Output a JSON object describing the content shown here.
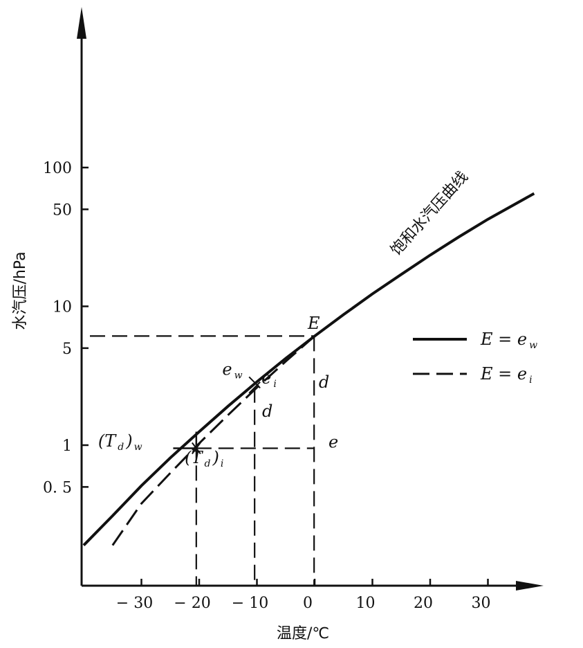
{
  "chart_data": {
    "type": "line",
    "xlabel": "温度/℃",
    "ylabel": "水汽压/hPa",
    "y_scale": "log",
    "x_ticks": [
      {
        "v": -30,
        "label": "− 30"
      },
      {
        "v": -20,
        "label": "− 20"
      },
      {
        "v": -10,
        "label": "− 10"
      },
      {
        "v": 0,
        "label": "0"
      },
      {
        "v": 10,
        "label": "10"
      },
      {
        "v": 20,
        "label": "20"
      },
      {
        "v": 30,
        "label": "30"
      }
    ],
    "y_ticks": [
      {
        "v": 0.5,
        "label": "0. 5"
      },
      {
        "v": 1,
        "label": "1"
      },
      {
        "v": 5,
        "label": "5"
      },
      {
        "v": 10,
        "label": "10"
      },
      {
        "v": 50,
        "label": "50"
      },
      {
        "v": 100,
        "label": "100"
      }
    ],
    "series": [
      {
        "name": "E = e_w",
        "style": "solid",
        "points": [
          [
            -40,
            0.19
          ],
          [
            -35,
            0.31
          ],
          [
            -30,
            0.51
          ],
          [
            -25,
            0.81
          ],
          [
            -20,
            1.25
          ],
          [
            -15,
            1.91
          ],
          [
            -10,
            2.86
          ],
          [
            -5,
            4.22
          ],
          [
            0,
            6.11
          ],
          [
            5,
            8.72
          ],
          [
            10,
            12.3
          ],
          [
            15,
            17.0
          ],
          [
            20,
            23.4
          ],
          [
            25,
            31.7
          ],
          [
            30,
            42.4
          ],
          [
            38,
            65
          ]
        ]
      },
      {
        "name": "E = e_i",
        "style": "dashed",
        "points": [
          [
            -35,
            0.19
          ],
          [
            -30,
            0.38
          ],
          [
            -25,
            0.63
          ],
          [
            -20,
            1.03
          ],
          [
            -15,
            1.65
          ],
          [
            -10,
            2.6
          ],
          [
            -5,
            4.02
          ],
          [
            0,
            6.11
          ]
        ]
      }
    ],
    "guides": {
      "E_level": 6.11,
      "e_level": 0.95,
      "x_verticals": [
        -20.5,
        -10.4,
        -0.1
      ]
    },
    "curve_label": "饱和水汽压曲线",
    "annotations": [
      {
        "text": "E",
        "x": -1.2,
        "y": 6.9
      },
      {
        "text": "e",
        "sub": "w",
        "x": -16,
        "y": 3.2
      },
      {
        "text": "e",
        "sub": "i",
        "x": -9.2,
        "y": 2.78
      },
      {
        "text": "d",
        "x": 0.7,
        "y": 2.6
      },
      {
        "text": "d",
        "x": -9.1,
        "y": 1.6
      },
      {
        "text": "e",
        "x": 2.4,
        "y": 0.96
      },
      {
        "text": "(T",
        "sub": "d",
        "post": ")",
        "post_sub": "w",
        "x": -37.5,
        "y": 0.98
      },
      {
        "text": "(T",
        "sub": "d",
        "post": ")",
        "post_sub": "i",
        "x": -22.5,
        "y": 0.74
      }
    ],
    "legend": {
      "position": "right",
      "entries": [
        {
          "label": "E = e",
          "sub": "w",
          "style": "solid"
        },
        {
          "label": "E = e",
          "sub": "i",
          "style": "dashed"
        }
      ]
    }
  }
}
